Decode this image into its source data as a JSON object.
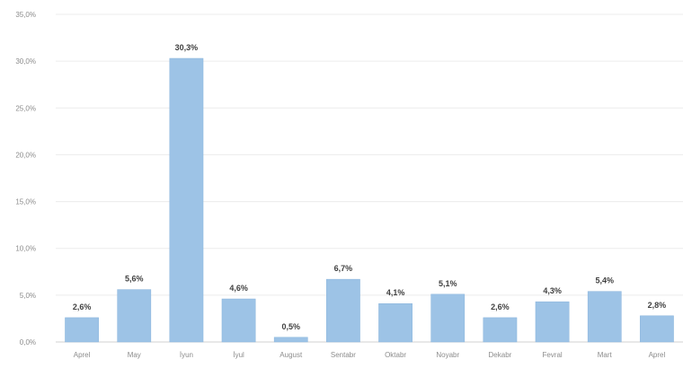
{
  "chart_data": {
    "type": "bar",
    "categories": [
      "Aprel",
      "May",
      "İyun",
      "İyul",
      "August",
      "Sentabr",
      "Oktabr",
      "Noyabr",
      "Dekabr",
      "Fevral",
      "Mart",
      "Aprel"
    ],
    "values": [
      2.6,
      5.6,
      30.3,
      4.6,
      0.5,
      6.7,
      4.1,
      5.1,
      2.6,
      4.3,
      5.4,
      2.8
    ],
    "value_labels": [
      "2,6%",
      "5,6%",
      "30,3%",
      "4,6%",
      "0,5%",
      "6,7%",
      "4,1%",
      "5,1%",
      "2,6%",
      "4,3%",
      "5,4%",
      "2,8%"
    ],
    "y_ticks": [
      0,
      5,
      10,
      15,
      20,
      25,
      30,
      35
    ],
    "y_tick_labels": [
      "0,0%",
      "5,0%",
      "10,0%",
      "15,0%",
      "20,0%",
      "25,0%",
      "30,0%",
      "35,0%"
    ],
    "ylim": [
      0,
      35
    ],
    "grid": true,
    "bar_color": "#9dc3e6",
    "bar_border_color": "#8ab4dc"
  }
}
